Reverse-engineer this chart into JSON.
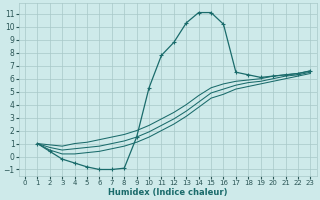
{
  "xlabel": "Humidex (Indice chaleur)",
  "bg_color": "#ceeaea",
  "grid_color": "#a8c8c8",
  "line_color": "#1a6b6b",
  "xlim": [
    -0.5,
    23.5
  ],
  "ylim": [
    -1.5,
    11.8
  ],
  "xticks": [
    0,
    1,
    2,
    3,
    4,
    5,
    6,
    7,
    8,
    9,
    10,
    11,
    12,
    13,
    14,
    15,
    16,
    17,
    18,
    19,
    20,
    21,
    22,
    23
  ],
  "yticks": [
    -1,
    0,
    1,
    2,
    3,
    4,
    5,
    6,
    7,
    8,
    9,
    10,
    11
  ],
  "curve1_x": [
    1,
    2,
    3,
    4,
    5,
    6,
    7,
    8,
    9,
    10,
    11,
    12,
    13,
    14,
    15,
    16,
    17,
    18,
    19,
    20,
    21,
    22,
    23
  ],
  "curve1_y": [
    1.0,
    0.4,
    -0.2,
    -0.5,
    -0.8,
    -1.0,
    -1.0,
    -0.9,
    1.5,
    5.3,
    7.8,
    8.8,
    10.3,
    11.1,
    11.1,
    10.2,
    6.5,
    6.3,
    6.1,
    6.2,
    6.3,
    6.4,
    6.6
  ],
  "curve2_x": [
    1,
    2,
    3,
    4,
    5,
    6,
    7,
    8,
    9,
    10,
    11,
    12,
    13,
    14,
    15,
    16,
    17,
    18,
    19,
    20,
    21,
    22,
    23
  ],
  "curve2_y": [
    1.0,
    0.9,
    0.8,
    1.0,
    1.1,
    1.3,
    1.5,
    1.7,
    2.0,
    2.4,
    2.9,
    3.4,
    4.0,
    4.7,
    5.3,
    5.6,
    5.8,
    5.9,
    6.0,
    6.2,
    6.3,
    6.4,
    6.6
  ],
  "curve3_x": [
    1,
    2,
    3,
    4,
    5,
    6,
    7,
    8,
    9,
    10,
    11,
    12,
    13,
    14,
    15,
    16,
    17,
    18,
    19,
    20,
    21,
    22,
    23
  ],
  "curve3_y": [
    1.0,
    0.7,
    0.5,
    0.6,
    0.7,
    0.8,
    1.0,
    1.2,
    1.5,
    1.9,
    2.4,
    2.9,
    3.5,
    4.2,
    4.9,
    5.2,
    5.5,
    5.7,
    5.8,
    6.0,
    6.2,
    6.3,
    6.5
  ],
  "curve4_x": [
    1,
    2,
    3,
    4,
    5,
    6,
    7,
    8,
    9,
    10,
    11,
    12,
    13,
    14,
    15,
    16,
    17,
    18,
    19,
    20,
    21,
    22,
    23
  ],
  "curve4_y": [
    1.0,
    0.5,
    0.2,
    0.2,
    0.3,
    0.4,
    0.6,
    0.8,
    1.1,
    1.5,
    2.0,
    2.5,
    3.1,
    3.8,
    4.5,
    4.8,
    5.2,
    5.4,
    5.6,
    5.8,
    6.0,
    6.2,
    6.4
  ]
}
